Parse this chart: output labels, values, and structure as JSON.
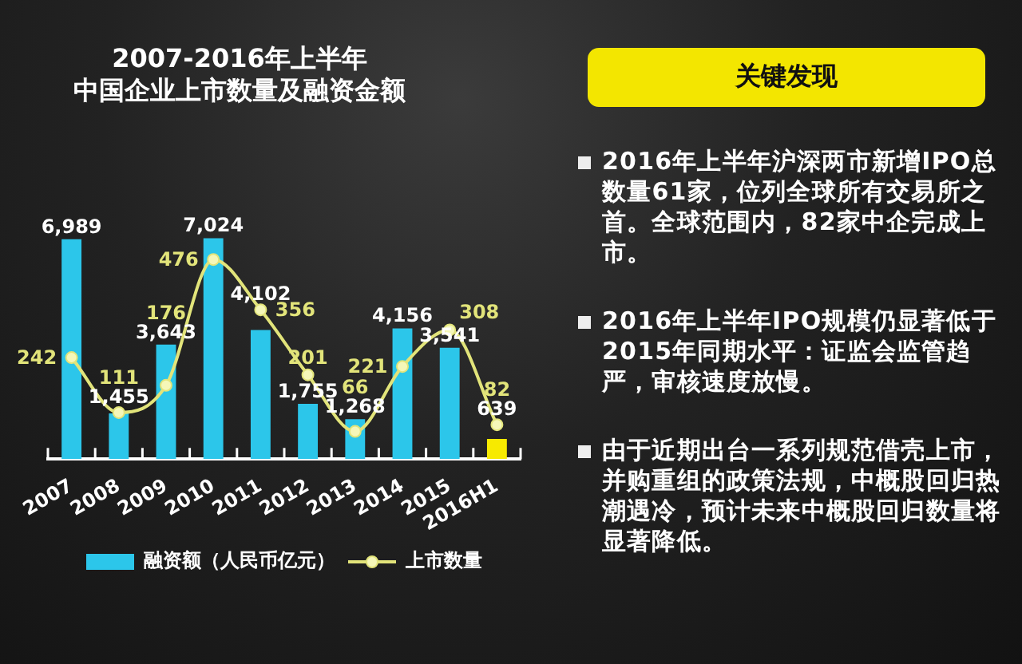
{
  "chart_data": [
    {
      "type": "bar",
      "title": "2007-2016年上半年",
      "subtitle": "中国企业上市数量及融资金额",
      "categories": [
        "2007",
        "2008",
        "2009",
        "2010",
        "2011",
        "2012",
        "2013",
        "2014",
        "2015",
        "2016H1"
      ],
      "series": [
        {
          "name": "融资额（人民币亿元）",
          "type": "bar",
          "color": "#2cc6ea",
          "colors": [
            "#2cc6ea",
            "#2cc6ea",
            "#2cc6ea",
            "#2cc6ea",
            "#2cc6ea",
            "#2cc6ea",
            "#2cc6ea",
            "#2cc6ea",
            "#2cc6ea",
            "#f7ea00"
          ],
          "values": [
            6989,
            1455,
            3643,
            7024,
            4102,
            1755,
            1268,
            4156,
            3541,
            639
          ],
          "value_labels": [
            "6,989",
            "1,455",
            "3,643",
            "7,024",
            "4,102",
            "1,755",
            "1,268",
            "4,156",
            "3,541",
            "639"
          ]
        },
        {
          "name": "上市数量",
          "type": "line",
          "axis": "y2",
          "color": "#e2e47a",
          "values": [
            242,
            111,
            176,
            476,
            356,
            201,
            66,
            221,
            308,
            82
          ],
          "value_labels": [
            "242",
            "111",
            "176",
            "476",
            "356",
            "201",
            "66",
            "221",
            "308",
            "82"
          ]
        }
      ],
      "legend": "bottom",
      "marker": "circle",
      "tick_labels": "x"
    },
    {
      "type": "other",
      "title": "关键发现",
      "annotations": [
        "2016年上半年沪深两市新增IPO总数量61家，位列全球所有交易所之首。全球范围内，82家中企完成上市。",
        "2016年上半年IPO规模仍显著低于2015年同期水平：证监会监管趋严，审核速度放慢。",
        "由于近期出台一系列规范借壳上市，并购重组的政策法规，中概股回归热潮遇冷，预计未来中概股回归数量将显著降低。"
      ]
    }
  ]
}
